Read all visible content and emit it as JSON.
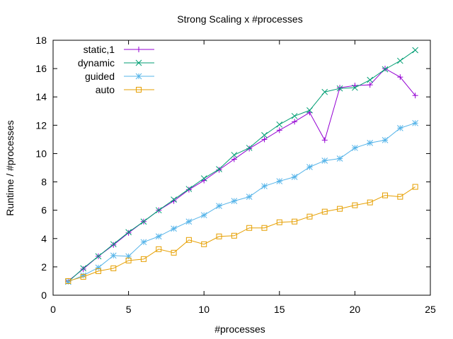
{
  "chart_data": {
    "type": "line",
    "title": "Strong Scaling x #processes",
    "xlabel": "#processes",
    "ylabel": "Runtime / #processes",
    "xlim": [
      0,
      25
    ],
    "ylim": [
      0,
      18
    ],
    "xticks": [
      0,
      5,
      10,
      15,
      20,
      25
    ],
    "yticks": [
      0,
      2,
      4,
      6,
      8,
      10,
      12,
      14,
      16,
      18
    ],
    "legend_position": "top-left",
    "grid": false,
    "x": [
      1,
      2,
      3,
      4,
      5,
      6,
      7,
      8,
      9,
      10,
      11,
      12,
      13,
      14,
      15,
      16,
      17,
      18,
      19,
      20,
      21,
      22,
      23,
      24
    ],
    "series": [
      {
        "name": "static,1",
        "color": "#9400d3",
        "marker": "plus",
        "values": [
          1.0,
          1.85,
          2.75,
          3.55,
          4.4,
          5.2,
          6.0,
          6.65,
          7.45,
          8.1,
          8.85,
          9.6,
          10.35,
          11.0,
          11.65,
          12.25,
          12.9,
          10.95,
          14.65,
          14.8,
          14.85,
          16.0,
          15.4,
          14.1
        ]
      },
      {
        "name": "dynamic",
        "color": "#009e73",
        "marker": "cross",
        "values": [
          0.95,
          1.9,
          2.75,
          3.6,
          4.45,
          5.2,
          6.0,
          6.75,
          7.5,
          8.25,
          8.9,
          9.9,
          10.4,
          11.3,
          12.05,
          12.65,
          13.05,
          14.35,
          14.6,
          14.65,
          15.2,
          15.95,
          16.55,
          17.3
        ]
      },
      {
        "name": "guided",
        "color": "#56b4e9",
        "marker": "star",
        "values": [
          0.95,
          1.4,
          1.95,
          2.8,
          2.75,
          3.75,
          4.15,
          4.7,
          5.2,
          5.65,
          6.3,
          6.65,
          6.95,
          7.7,
          8.05,
          8.35,
          9.05,
          9.5,
          9.65,
          10.4,
          10.75,
          10.95,
          11.8,
          12.15
        ]
      },
      {
        "name": "auto",
        "color": "#e69f00",
        "marker": "square",
        "values": [
          1.0,
          1.3,
          1.7,
          1.9,
          2.45,
          2.55,
          3.25,
          3.0,
          3.9,
          3.6,
          4.15,
          4.2,
          4.75,
          4.75,
          5.15,
          5.2,
          5.55,
          5.9,
          6.1,
          6.35,
          6.55,
          7.05,
          6.95,
          7.65
        ]
      }
    ]
  }
}
